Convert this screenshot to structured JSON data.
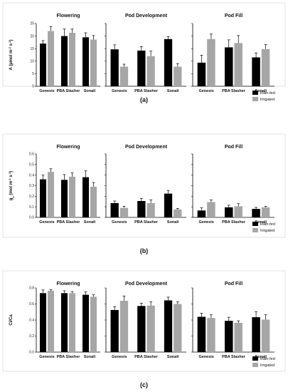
{
  "colors": {
    "rainfed": "#000000",
    "irrigated": "#a6a6a6",
    "axis": "#000000",
    "border": "#cfcfcf"
  },
  "chart_data": [
    {
      "type": "bar",
      "caption": "(a)",
      "ylabel_base": "A (µmol m",
      "ylabel_sup1": "-2",
      "ylabel_mid": " s",
      "ylabel_sup2": "-1",
      "ylabel_end": ")",
      "ylim": [
        0,
        25
      ],
      "yticks": [
        0,
        5,
        10,
        15,
        20,
        25
      ],
      "legend": {
        "placement": "bottom-right",
        "labels": [
          "Rain-fed",
          "Irrigated"
        ]
      },
      "categories": [
        "Genesis",
        "PBA Slasher",
        "Sonali"
      ],
      "panels": [
        {
          "title": "Flowering",
          "rainfed": [
            17,
            20,
            19.5
          ],
          "rainfed_err": [
            1.2,
            2.8,
            1.8
          ],
          "irrigated": [
            22,
            21.3,
            18.6
          ],
          "irrigated_err": [
            1.8,
            1.5,
            1.6
          ]
        },
        {
          "title": "Pod Development",
          "rainfed": [
            14.7,
            14.2,
            18.8
          ],
          "rainfed_err": [
            1.8,
            1.6,
            1.0
          ],
          "irrigated": [
            7.8,
            12,
            7.8
          ],
          "irrigated_err": [
            1.0,
            2.0,
            1.2
          ]
        },
        {
          "title": "Pod Fill",
          "rainfed": [
            9.4,
            15.5,
            11.5
          ],
          "rainfed_err": [
            3.0,
            3.0,
            1.8
          ],
          "irrigated": [
            18.8,
            17.2,
            14.8
          ],
          "irrigated_err": [
            2.0,
            3.0,
            1.8
          ]
        }
      ]
    },
    {
      "type": "bar",
      "caption": "(b)",
      "ylabel_base": "g",
      "ylabel_sub": "s",
      "ylabel_mid": " (mol m",
      "ylabel_sup1": "-2",
      "ylabel_mid2": " s",
      "ylabel_sup2": "-1",
      "ylabel_end": ")",
      "ylim": [
        0,
        0.6
      ],
      "yticks": [
        0,
        0.1,
        0.2,
        0.3,
        0.4,
        0.5,
        0.6
      ],
      "legend": {
        "placement": "bottom-right",
        "labels": [
          "Rain-fed",
          "Irrigated"
        ]
      },
      "categories": [
        "Genesis",
        "PBA Slasher",
        "Sonali"
      ],
      "panels": [
        {
          "title": "Flowering",
          "rainfed": [
            0.36,
            0.355,
            0.38
          ],
          "rainfed_err": [
            0.04,
            0.05,
            0.06
          ],
          "irrigated": [
            0.43,
            0.385,
            0.29
          ],
          "irrigated_err": [
            0.03,
            0.035,
            0.04
          ]
        },
        {
          "title": "Pod Development",
          "rainfed": [
            0.135,
            0.155,
            0.225
          ],
          "rainfed_err": [
            0.02,
            0.025,
            0.03
          ],
          "irrigated": [
            0.09,
            0.135,
            0.075
          ],
          "irrigated_err": [
            0.015,
            0.03,
            0.01
          ]
        },
        {
          "title": "Pod Fill",
          "rainfed": [
            0.065,
            0.095,
            0.08
          ],
          "rainfed_err": [
            0.025,
            0.02,
            0.015
          ],
          "irrigated": [
            0.145,
            0.105,
            0.095
          ],
          "irrigated_err": [
            0.02,
            0.025,
            0.01
          ]
        }
      ]
    },
    {
      "type": "bar",
      "caption": "(c)",
      "ylabel_base": "Ci/Ca",
      "ylim": [
        0,
        0.8
      ],
      "yticks": [
        0,
        0.2,
        0.4,
        0.6,
        0.8
      ],
      "legend": {
        "placement": "bottom-right",
        "labels": [
          "Rain-fed",
          "Irrigated"
        ]
      },
      "categories": [
        "Genesis",
        "PBA Slasher",
        "Sonali"
      ],
      "panels": [
        {
          "title": "Flowering",
          "rainfed": [
            0.735,
            0.735,
            0.715
          ],
          "rainfed_err": [
            0.04,
            0.03,
            0.035
          ],
          "irrigated": [
            0.765,
            0.735,
            0.69
          ],
          "irrigated_err": [
            0.015,
            0.02,
            0.025
          ]
        },
        {
          "title": "Pod Development",
          "rainfed": [
            0.525,
            0.575,
            0.645
          ],
          "rainfed_err": [
            0.04,
            0.035,
            0.04
          ],
          "irrigated": [
            0.64,
            0.58,
            0.6
          ],
          "irrigated_err": [
            0.06,
            0.045,
            0.025
          ]
        },
        {
          "title": "Pod Fill",
          "rainfed": [
            0.44,
            0.39,
            0.435
          ],
          "rainfed_err": [
            0.045,
            0.045,
            0.07
          ],
          "irrigated": [
            0.425,
            0.365,
            0.405
          ],
          "irrigated_err": [
            0.04,
            0.025,
            0.06
          ]
        }
      ]
    }
  ]
}
